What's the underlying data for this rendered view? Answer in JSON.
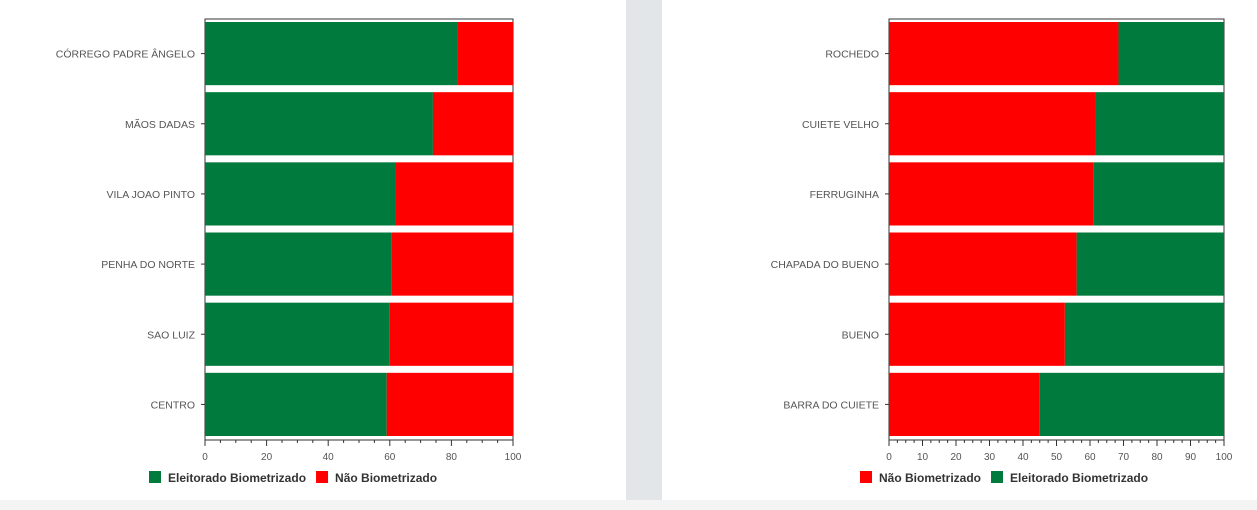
{
  "colors": {
    "green": "#007a3d",
    "red": "#ff0000"
  },
  "chart_data": [
    {
      "type": "bar",
      "orientation": "horizontal",
      "stacked": true,
      "categories": [
        "CÓRREGO PADRE ÂNGELO",
        "MÃOS DADAS",
        "VILA JOAO PINTO",
        "PENHA DO NORTE",
        "SAO LUIZ",
        "CENTRO"
      ],
      "series": [
        {
          "name": "Eleitorado Biometrizado",
          "color": "#007a3d",
          "values": [
            82,
            74,
            62,
            60.5,
            60,
            59
          ]
        },
        {
          "name": "Não Biometrizado",
          "color": "#ff0000",
          "values": [
            18,
            26,
            38,
            39.5,
            40,
            41
          ]
        }
      ],
      "xlim": [
        0,
        100
      ],
      "xticks": [
        "0",
        "20",
        "40",
        "60",
        "80",
        "100"
      ],
      "legend_order": [
        0,
        1
      ],
      "legend": "bottom"
    },
    {
      "type": "bar",
      "orientation": "horizontal",
      "stacked": true,
      "categories": [
        "ROCHEDO",
        "CUIETE VELHO",
        "FERRUGINHA",
        "CHAPADA DO BUENO",
        "BUENO",
        "BARRA DO CUIETE"
      ],
      "series": [
        {
          "name": "Não Biometrizado",
          "color": "#ff0000",
          "values": [
            68.5,
            61.5,
            61,
            56,
            52.5,
            45
          ]
        },
        {
          "name": "Eleitorado Biometrizado",
          "color": "#007a3d",
          "values": [
            31.5,
            38.5,
            39,
            44,
            47.5,
            55
          ]
        }
      ],
      "xlim": [
        0,
        100
      ],
      "xticks": [
        "0",
        "10",
        "20",
        "30",
        "40",
        "50",
        "60",
        "70",
        "80",
        "90",
        "100"
      ],
      "legend_order": [
        0,
        1
      ],
      "legend": "bottom"
    }
  ]
}
